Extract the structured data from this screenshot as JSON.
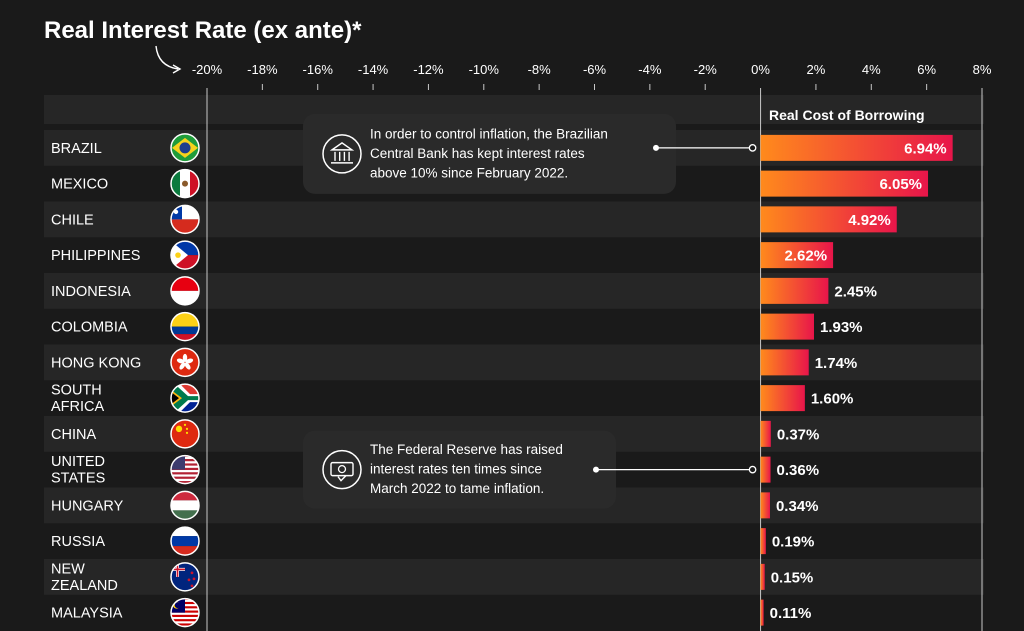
{
  "chart_data": {
    "type": "bar",
    "title": "Real Interest Rate (ex ante)*",
    "series_header": "Real Cost of Borrowing",
    "x_ticks": [
      "-20%",
      "-18%",
      "-16%",
      "-14%",
      "-12%",
      "-10%",
      "-8%",
      "-6%",
      "-4%",
      "-2%",
      "0%",
      "2%",
      "4%",
      "6%",
      "8%"
    ],
    "xlim": [
      -20,
      8
    ],
    "categories": [
      [
        "BRAZIL"
      ],
      [
        "MEXICO"
      ],
      [
        "CHILE"
      ],
      [
        "PHILIPPINES"
      ],
      [
        "INDONESIA"
      ],
      [
        "COLOMBIA"
      ],
      [
        "HONG KONG"
      ],
      [
        "SOUTH",
        "AFRICA"
      ],
      [
        "CHINA"
      ],
      [
        "UNITED",
        "STATES"
      ],
      [
        "HUNGARY"
      ],
      [
        "RUSSIA"
      ],
      [
        "NEW",
        "ZEALAND"
      ],
      [
        "MALAYSIA"
      ]
    ],
    "values": [
      6.94,
      6.05,
      4.92,
      2.62,
      2.45,
      1.93,
      1.74,
      1.6,
      0.37,
      0.36,
      0.34,
      0.19,
      0.15,
      0.11
    ],
    "value_labels": [
      "6.94%",
      "6.05%",
      "4.92%",
      "2.62%",
      "2.45%",
      "1.93%",
      "1.74%",
      "1.60%",
      "0.37%",
      "0.36%",
      "0.34%",
      "0.19%",
      "0.15%",
      "0.11%"
    ],
    "flags": [
      "brazil",
      "mexico",
      "chile",
      "philippines",
      "indonesia",
      "colombia",
      "hong-kong",
      "south-africa",
      "china",
      "united-states",
      "hungary",
      "russia",
      "new-zealand",
      "malaysia"
    ],
    "annotations": [
      {
        "category": "BRAZIL",
        "icon": "bank-icon",
        "lines": [
          "In order to control inflation, the Brazilian",
          "Central Bank has kept interest rates",
          "above 10% since February 2022."
        ]
      },
      {
        "category": "UNITED STATES",
        "icon": "money-icon",
        "lines": [
          "The Federal Reserve has raised",
          "interest rates ten times since",
          "March 2022 to tame inflation."
        ]
      }
    ],
    "colors": {
      "background": "#1a1a1a",
      "row_alt": "#262626",
      "bar_start": "#ff8a1c",
      "bar_end": "#e8154a",
      "gridline": "#c8c8c8"
    }
  }
}
